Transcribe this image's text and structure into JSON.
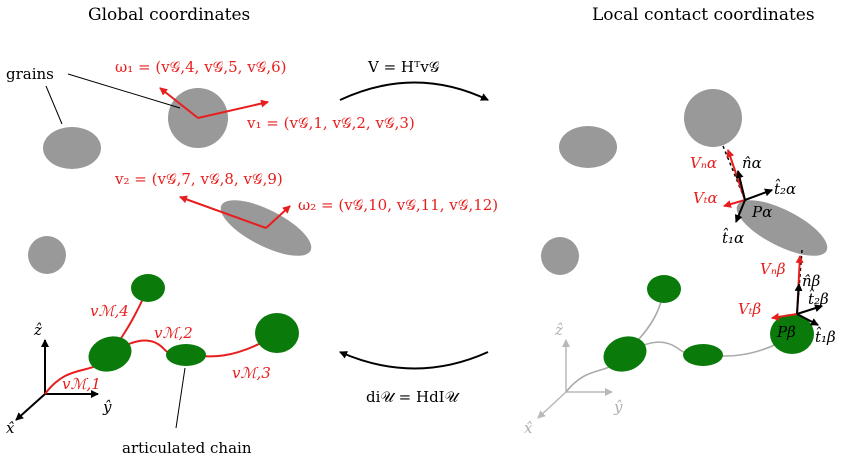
{
  "titles": {
    "left": "Global coordinates",
    "right": "Local contact coordinates"
  },
  "transforms": {
    "top": "V = Hᵀv𝒢",
    "bottom": "di𝒰 = HdI𝒰"
  },
  "labels": {
    "grains": "grains",
    "chain": "articulated chain",
    "omega1": "ω₁ = (v𝒢,4, v𝒢,5, v𝒢,6)",
    "v1": "v₁ = (v𝒢,1, v𝒢,2, v𝒢,3)",
    "v2": "v₂ = (v𝒢,7, v𝒢,8, v𝒢,9)",
    "omega2": "ω₂ = (v𝒢,10, v𝒢,11, v𝒢,12)",
    "vm1": "vℳ,1",
    "vm2": "vℳ,2",
    "vm3": "vℳ,3",
    "vm4": "vℳ,4"
  },
  "axes": {
    "z": "ẑ",
    "y": "ŷ",
    "x": "x̂"
  },
  "contact_alpha": {
    "Vn": "Vₙα",
    "Vt": "Vₜα",
    "n": "n̂α",
    "t1": "t̂₁α",
    "t2": "t̂₂α",
    "P": "Pα"
  },
  "contact_beta": {
    "Vn": "Vₙβ",
    "Vt": "Vₜβ",
    "n": "n̂β",
    "t1": "t̂₁β",
    "t2": "t̂₂β",
    "P": "Pβ"
  },
  "colors": {
    "red": "#e81e1e",
    "grain": "#999999",
    "chain_body": "#0a7a0a"
  }
}
